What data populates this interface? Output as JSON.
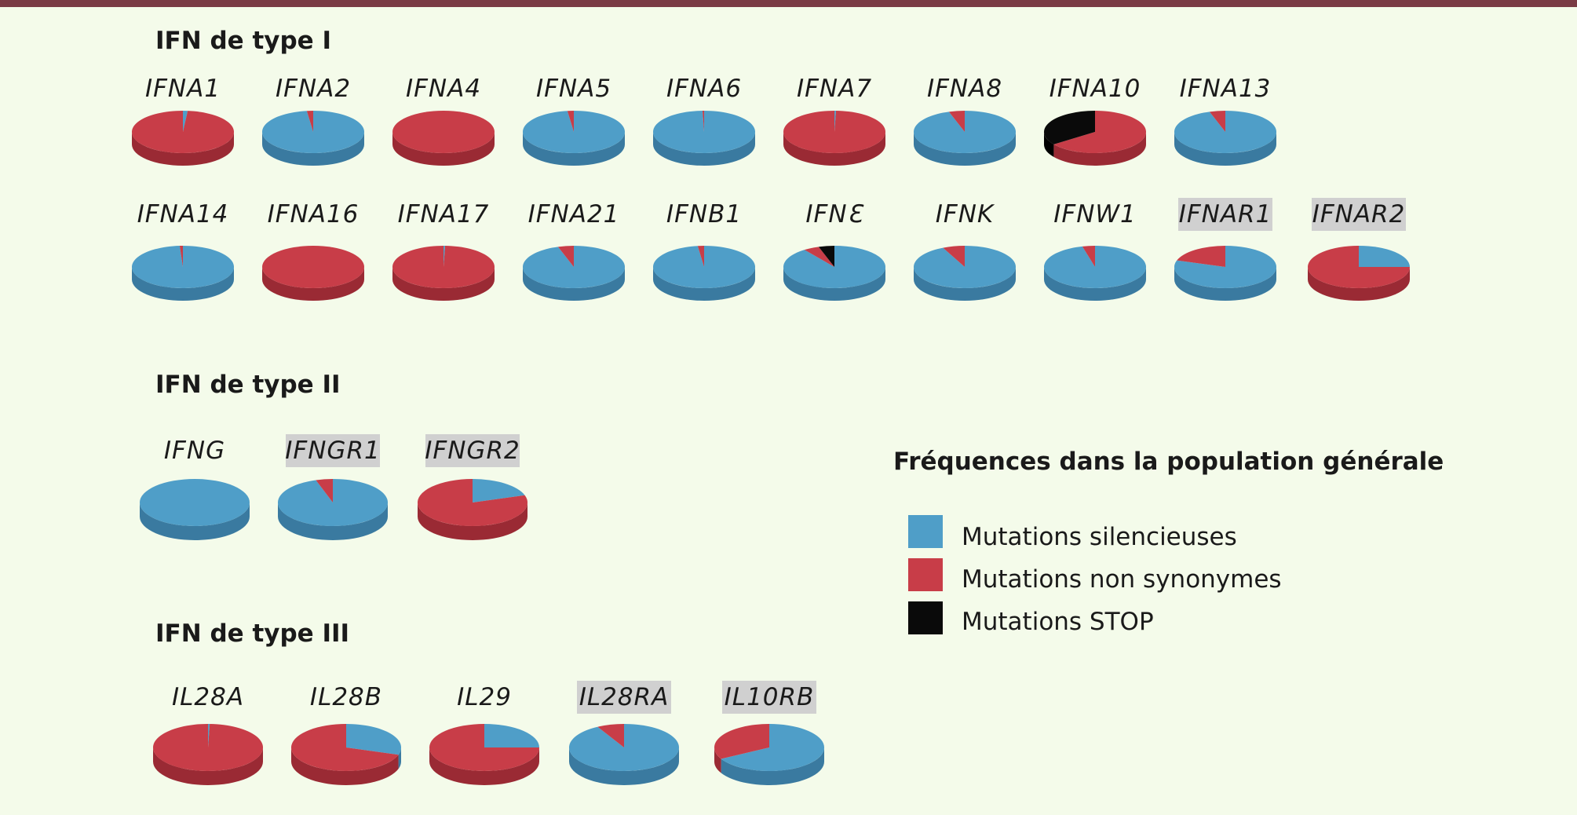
{
  "chart_data": {
    "type": "pie",
    "legend": {
      "title": "Fréquences dans la population générale",
      "items": [
        {
          "key": "silent",
          "label": "Mutations silencieuses",
          "color": "#4f9ec8"
        },
        {
          "key": "nonsyn",
          "label": "Mutations non synonymes",
          "color": "#c83d48"
        },
        {
          "key": "stop",
          "label": "Mutations STOP",
          "color": "#0a0a0a"
        }
      ]
    },
    "groups": [
      {
        "title": "IFN de type I",
        "genes": [
          {
            "name": "IFNA1",
            "receptor": false,
            "silent": 1.5,
            "nonsyn": 98.5,
            "stop": 0
          },
          {
            "name": "IFNA2",
            "receptor": false,
            "silent": 98,
            "nonsyn": 2,
            "stop": 0
          },
          {
            "name": "IFNA4",
            "receptor": false,
            "silent": 0,
            "nonsyn": 100,
            "stop": 0
          },
          {
            "name": "IFNA5",
            "receptor": false,
            "silent": 98,
            "nonsyn": 2,
            "stop": 0
          },
          {
            "name": "IFNA6",
            "receptor": false,
            "silent": 99.5,
            "nonsyn": 0.5,
            "stop": 0
          },
          {
            "name": "IFNA7",
            "receptor": false,
            "silent": 0.5,
            "nonsyn": 99.5,
            "stop": 0
          },
          {
            "name": "IFNA8",
            "receptor": false,
            "silent": 95,
            "nonsyn": 5,
            "stop": 0
          },
          {
            "name": "IFNA10",
            "receptor": false,
            "silent": 0,
            "nonsyn": 65,
            "stop": 35
          },
          {
            "name": "IFNA13",
            "receptor": false,
            "silent": 95,
            "nonsyn": 5,
            "stop": 0
          },
          {
            "name": "IFNA14",
            "receptor": false,
            "silent": 99,
            "nonsyn": 1,
            "stop": 0
          },
          {
            "name": "IFNA16",
            "receptor": false,
            "silent": 0,
            "nonsyn": 100,
            "stop": 0
          },
          {
            "name": "IFNA17",
            "receptor": false,
            "silent": 0.5,
            "nonsyn": 99.5,
            "stop": 0
          },
          {
            "name": "IFNA21",
            "receptor": false,
            "silent": 95,
            "nonsyn": 5,
            "stop": 0
          },
          {
            "name": "IFNB1",
            "receptor": false,
            "silent": 98,
            "nonsyn": 2,
            "stop": 0
          },
          {
            "name": "IFNƐ",
            "receptor": false,
            "silent": 90,
            "nonsyn": 5,
            "stop": 5
          },
          {
            "name": "IFNK",
            "receptor": false,
            "silent": 93,
            "nonsyn": 7,
            "stop": 0
          },
          {
            "name": "IFNW1",
            "receptor": false,
            "silent": 96,
            "nonsyn": 4,
            "stop": 0
          },
          {
            "name": "IFNAR1",
            "receptor": true,
            "silent": 80,
            "nonsyn": 20,
            "stop": 0
          },
          {
            "name": "IFNAR2",
            "receptor": true,
            "silent": 25,
            "nonsyn": 75,
            "stop": 0
          }
        ]
      },
      {
        "title": "IFN de type II",
        "genes": [
          {
            "name": "IFNG",
            "receptor": false,
            "silent": 100,
            "nonsyn": 0,
            "stop": 0
          },
          {
            "name": "IFNGR1",
            "receptor": true,
            "silent": 95,
            "nonsyn": 5,
            "stop": 0
          },
          {
            "name": "IFNGR2",
            "receptor": true,
            "silent": 20,
            "nonsyn": 80,
            "stop": 0
          }
        ]
      },
      {
        "title": "IFN de type III",
        "genes": [
          {
            "name": "IL28A",
            "receptor": false,
            "silent": 0.5,
            "nonsyn": 99.5,
            "stop": 0
          },
          {
            "name": "IL28B",
            "receptor": false,
            "silent": 30,
            "nonsyn": 70,
            "stop": 0
          },
          {
            "name": "IL29",
            "receptor": false,
            "silent": 25,
            "nonsyn": 75,
            "stop": 0
          },
          {
            "name": "IL28RA",
            "receptor": true,
            "silent": 92,
            "nonsyn": 8,
            "stop": 0
          },
          {
            "name": "IL10RB",
            "receptor": true,
            "silent": 67,
            "nonsyn": 33,
            "stop": 0
          }
        ]
      }
    ]
  }
}
